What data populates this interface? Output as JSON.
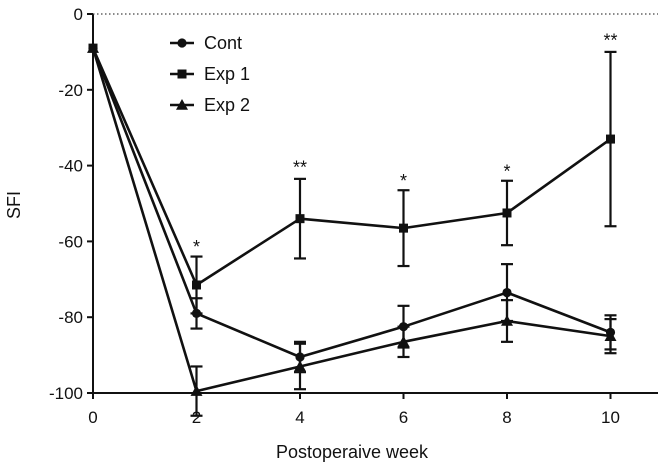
{
  "chart_data": {
    "type": "line",
    "title": "",
    "xlabel": "Postoperaive week",
    "ylabel": "SFI",
    "x": [
      0,
      2,
      4,
      6,
      8,
      10
    ],
    "xlim": [
      0,
      11
    ],
    "ylim": [
      -100,
      0
    ],
    "xticks": [
      0,
      2,
      4,
      6,
      8,
      10
    ],
    "yticks": [
      0,
      -20,
      -40,
      -60,
      -80,
      -100
    ],
    "zero_line": "dotted",
    "legend_position": "top-left",
    "series": [
      {
        "name": "Cont",
        "marker": "circle",
        "values": [
          -9,
          -79,
          -90.5,
          -82.5,
          -73.5,
          -84
        ],
        "errors": [
          0,
          4,
          4,
          5.5,
          7.5,
          4.5
        ]
      },
      {
        "name": "Exp 1",
        "marker": "square",
        "values": [
          -9,
          -71.5,
          -54,
          -56.5,
          -52.5,
          -33
        ],
        "errors": [
          0,
          7.5,
          10.5,
          10,
          8.5,
          23
        ]
      },
      {
        "name": "Exp 2",
        "marker": "triangle",
        "values": [
          -9,
          -99.5,
          -93,
          -86.5,
          -81,
          -85
        ],
        "errors": [
          0,
          6.5,
          6,
          4,
          5.5,
          4.5
        ]
      }
    ],
    "annotations": [
      {
        "x": 2,
        "y": -61.5,
        "text": "*"
      },
      {
        "x": 4,
        "y": -40.5,
        "text": "**"
      },
      {
        "x": 6,
        "y": -44,
        "text": "*"
      },
      {
        "x": 8,
        "y": -41.5,
        "text": "*"
      },
      {
        "x": 10,
        "y": -7,
        "text": "**"
      }
    ]
  }
}
